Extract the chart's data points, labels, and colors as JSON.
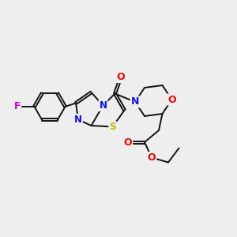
{
  "bg_color": "#eeeeee",
  "bond_color": "#111111",
  "bond_width": 1.4,
  "dbo": 0.05,
  "colors": {
    "N": "#1010ee",
    "O": "#ee0000",
    "S": "#bbbb00",
    "F": "#cc00cc",
    "C": "#111111"
  }
}
